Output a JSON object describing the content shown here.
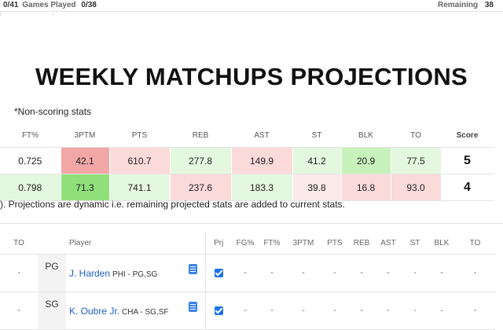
{
  "topbar": {
    "left_count": "0/41",
    "games_label": "Games Played",
    "games_value": "0/38",
    "remaining_label": "Remaining",
    "remaining_value": "38"
  },
  "page_title": "WEEKLY MATCHUPS PROJECTIONS",
  "non_scoring_note": "*Non-scoring stats",
  "projections": {
    "headers": [
      "FT%",
      "3PTM",
      "PTS",
      "REB",
      "AST",
      "ST",
      "BLK",
      "TO",
      "Score"
    ],
    "rows": [
      {
        "cells": [
          "0.725",
          "42.1",
          "610.7",
          "277.8",
          "149.9",
          "41.2",
          "20.9",
          "77.5"
        ],
        "colors": [
          "#ffffff",
          "#f0a7a6",
          "#fbdada",
          "#e4f7df",
          "#fbdada",
          "#e4f7df",
          "#c8f2bb",
          "#e4f7df"
        ],
        "score": "5"
      },
      {
        "cells": [
          "0.798",
          "71.3",
          "741.1",
          "237.6",
          "183.3",
          "39.8",
          "16.8",
          "93.0"
        ],
        "colors": [
          "#e4f7df",
          "#8fe07a",
          "#e4f7df",
          "#fbdada",
          "#e4f7df",
          "#fbe9e9",
          "#fbdada",
          "#fbdada"
        ],
        "score": "4"
      }
    ]
  },
  "footnote": "). Projections are dynamic i.e. remaining projected stats are added to current stats.",
  "roster": {
    "headers": {
      "to": "TO",
      "player": "Player",
      "prj": "Prj",
      "fg": "FG%",
      "ft": "FT%",
      "tpm": "3PTM",
      "pts": "PTS",
      "reb": "REB",
      "ast": "AST",
      "st": "ST",
      "blk": "BLK",
      "to2": "TO"
    },
    "rows": [
      {
        "to": "-",
        "pos": "PG",
        "name": "J. Harden",
        "team": "PHI - PG,SG",
        "stats": [
          "-",
          "-",
          "-",
          "-",
          "-",
          "-",
          "-",
          "-",
          "-"
        ]
      },
      {
        "to": "-",
        "pos": "SG",
        "name": "K. Oubre Jr.",
        "team": "CHA - SG,SF",
        "stats": [
          "-",
          "-",
          "-",
          "-",
          "-",
          "-",
          "-",
          "-",
          "-"
        ]
      }
    ]
  }
}
